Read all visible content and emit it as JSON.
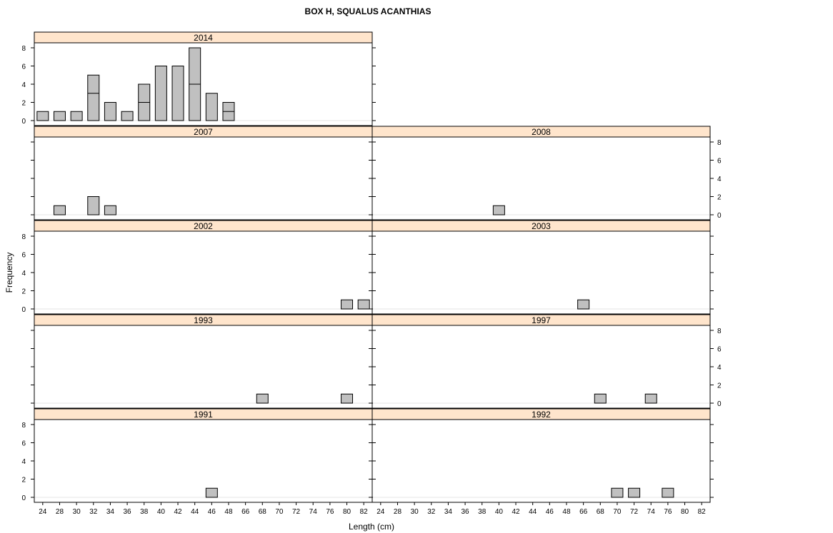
{
  "chart_data": {
    "type": "bar",
    "title": "BOX H, SQUALUS ACANTHIAS",
    "xlabel": "Length (cm)",
    "ylabel": "Frequency",
    "x_ticks": [
      "24",
      "28",
      "30",
      "32",
      "34",
      "36",
      "38",
      "40",
      "42",
      "44",
      "46",
      "48",
      "66",
      "68",
      "70",
      "72",
      "74",
      "76",
      "80",
      "82"
    ],
    "y_ticks": [
      "0",
      "2",
      "4",
      "6",
      "8"
    ],
    "ylim": [
      0,
      8
    ],
    "colors": {
      "strip": "#ffe5cc",
      "bar": "#c0c0c0",
      "grid": "#e6e6e6"
    },
    "panels": [
      {
        "year": "2014",
        "lengths": [
          "24",
          "28",
          "30",
          "32",
          "34",
          "36",
          "38",
          "40",
          "42",
          "44",
          "46",
          "48"
        ],
        "values": [
          1,
          1,
          1,
          5,
          2,
          1,
          4,
          6,
          6,
          8,
          3,
          2
        ],
        "splits": [
          [],
          [],
          [],
          [
            3
          ],
          [],
          [],
          [
            2
          ],
          [],
          [],
          [
            4
          ],
          [],
          [
            1
          ]
        ]
      },
      {
        "year": "2007",
        "lengths": [
          "28",
          "32",
          "34"
        ],
        "values": [
          1,
          2,
          1
        ],
        "splits": [
          [],
          [],
          []
        ]
      },
      {
        "year": "2008",
        "lengths": [
          "40"
        ],
        "values": [
          1
        ],
        "splits": [
          []
        ]
      },
      {
        "year": "2002",
        "lengths": [
          "80",
          "82"
        ],
        "values": [
          1,
          1
        ],
        "splits": [
          [],
          []
        ]
      },
      {
        "year": "2003",
        "lengths": [
          "66"
        ],
        "values": [
          1
        ],
        "splits": [
          []
        ]
      },
      {
        "year": "1993",
        "lengths": [
          "68",
          "80"
        ],
        "values": [
          1,
          1
        ],
        "splits": [
          [],
          []
        ]
      },
      {
        "year": "1997",
        "lengths": [
          "68",
          "74"
        ],
        "values": [
          1,
          1
        ],
        "splits": [
          [],
          []
        ]
      },
      {
        "year": "1991",
        "lengths": [
          "46"
        ],
        "values": [
          1
        ],
        "splits": [
          []
        ]
      },
      {
        "year": "1992",
        "lengths": [
          "70",
          "72",
          "76"
        ],
        "values": [
          1,
          1,
          1
        ],
        "splits": [
          [],
          [],
          []
        ]
      }
    ]
  }
}
